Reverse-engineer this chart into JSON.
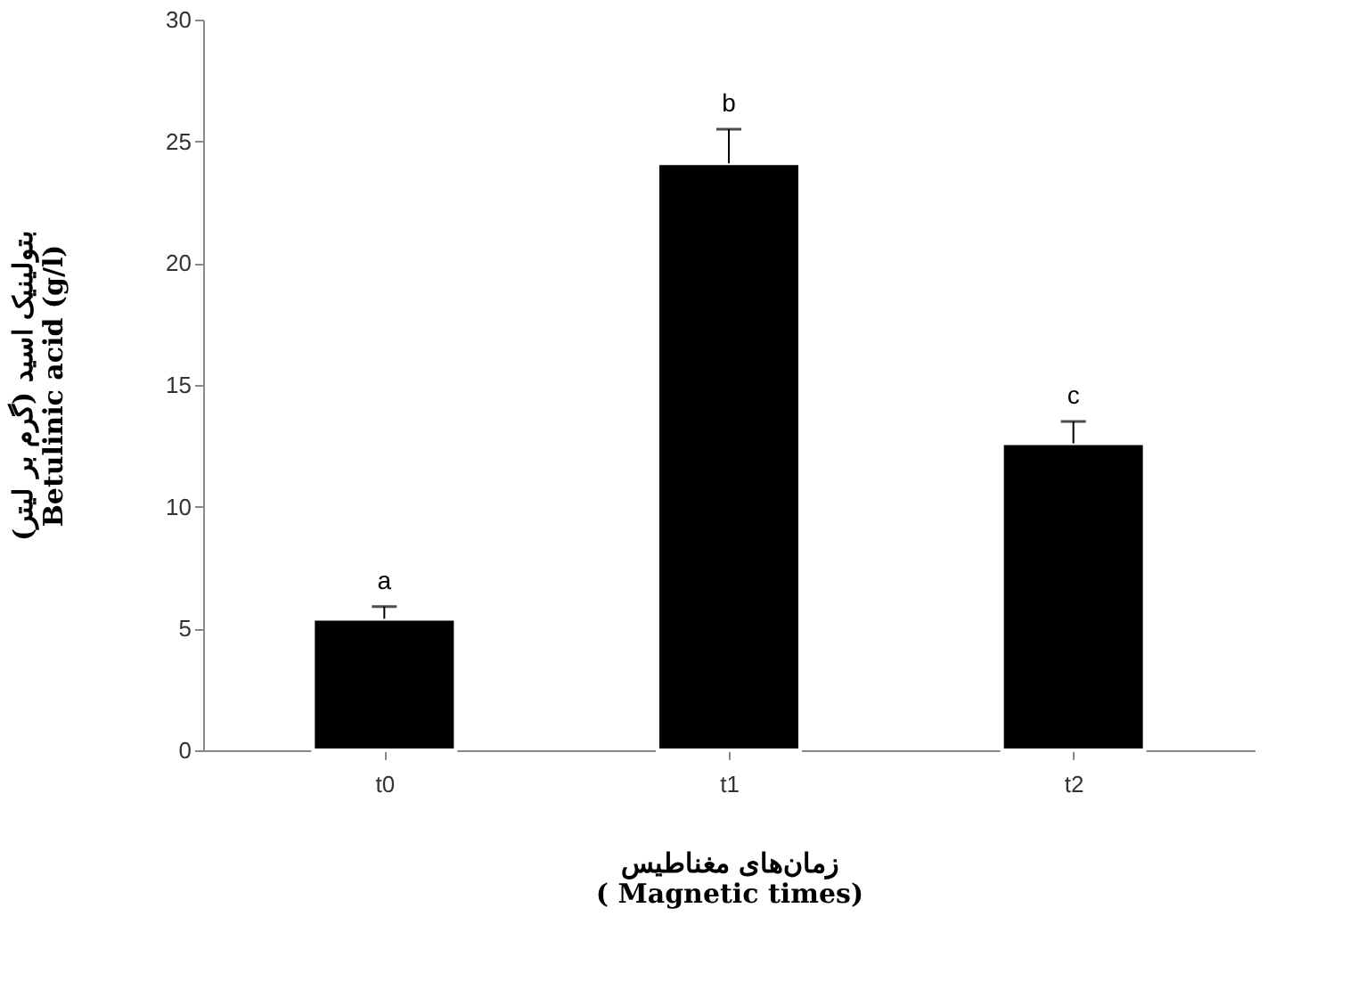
{
  "chart_data": {
    "type": "bar",
    "categories": [
      "t0",
      "t1",
      "t2"
    ],
    "values": [
      5.4,
      24.1,
      12.6
    ],
    "errors": [
      0.5,
      1.4,
      0.9
    ],
    "color": "#000000",
    "ylim": [
      0,
      30
    ],
    "yticks": [
      0,
      5,
      10,
      15,
      20,
      25,
      30
    ],
    "ylabel": "بتولینیک اسید (گرم بر لیتر)\nBetulinic acid (g/l)",
    "xlabel": "زمان‌های مغناطیس\n( Magnetic times)",
    "annotations": [
      "a",
      "b",
      "c"
    ],
    "grid": false
  }
}
